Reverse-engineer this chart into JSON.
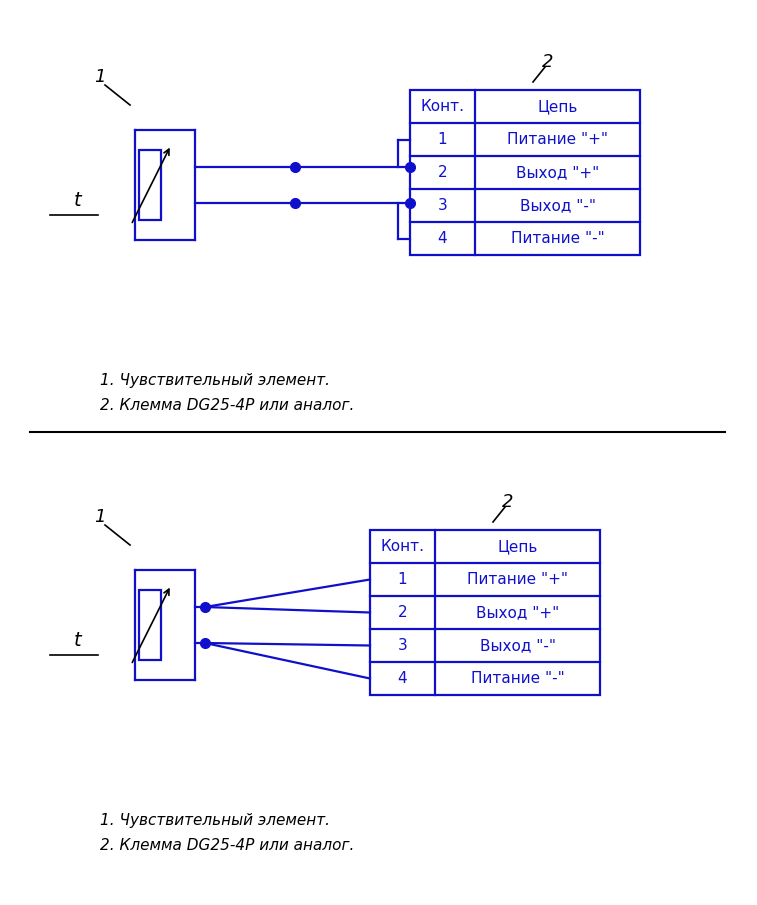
{
  "blue": "#1010CC",
  "black": "#000000",
  "bg": "#FFFFFF",
  "lw": 1.6,
  "note1": "1. Чувствительный элемент.",
  "note2": "2. Клемма DG25-4P или аналог.",
  "rows_num": [
    "1",
    "2",
    "3",
    "4"
  ],
  "rows_text": [
    "Питание \"+\"",
    "Выход \"+\"",
    "Выход \"-\"",
    "Питание \"-\""
  ],
  "header_num": "Конт.",
  "header_text": "Цепь",
  "label_1": "1",
  "label_2": "2",
  "label_t": "t"
}
